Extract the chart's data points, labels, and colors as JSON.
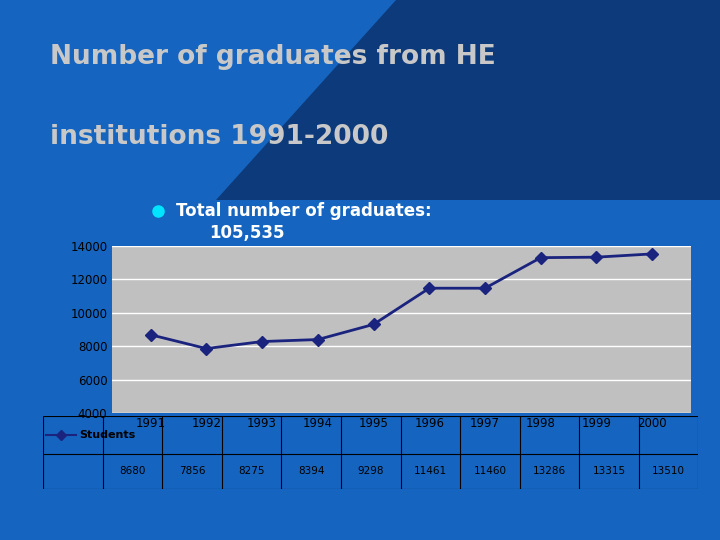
{
  "title_line1": "Number of graduates from HE",
  "title_line2": "institutions 1991-2000",
  "bullet_text_line1": "Total number of graduates:",
  "bullet_text_line2": "105,535",
  "years": [
    1991,
    1992,
    1993,
    1994,
    1995,
    1996,
    1997,
    1998,
    1999,
    2000
  ],
  "students": [
    8680,
    7856,
    8275,
    8394,
    9298,
    11461,
    11460,
    13286,
    13315,
    13510
  ],
  "legend_label": "Students",
  "table_row_label": "Students",
  "table_values": [
    "8680",
    "7856",
    "8275",
    "8394",
    "9298",
    "11461",
    "11460",
    "13286",
    "13315",
    "13510"
  ],
  "ylim": [
    4000,
    14000
  ],
  "yticks": [
    4000,
    6000,
    8000,
    10000,
    12000,
    14000
  ],
  "bg_color": "#1565C0",
  "title_bg_gradient_start": "#1565C0",
  "title_bg_gradient_end": "#0D3B8C",
  "chart_bg": "#C0C0C0",
  "line_color": "#1A237E",
  "marker_color": "#1A237E",
  "title_color": "#C8C8C8",
  "bullet_color": "#00E5FF",
  "table_bg": "#ffffff",
  "underline_color": "#29B6F6",
  "bottom_red": "#CC2200",
  "white_box_bg": "#ffffff"
}
